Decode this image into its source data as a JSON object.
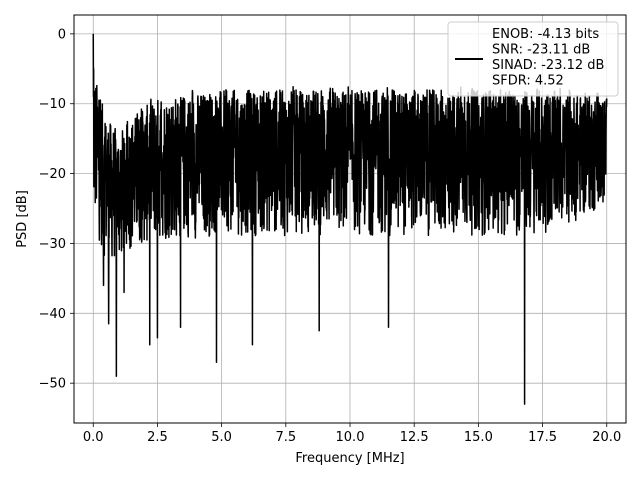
{
  "chart_data": {
    "type": "line",
    "xlabel": "Frequency [MHz]",
    "ylabel": "PSD [dB]",
    "xlim": [
      -0.75,
      20.75
    ],
    "ylim": [
      -55.7,
      2.7
    ],
    "xticks": [
      0.0,
      2.5,
      5.0,
      7.5,
      10.0,
      12.5,
      15.0,
      17.5,
      20.0
    ],
    "xtick_labels": [
      "0.0",
      "2.5",
      "5.0",
      "7.5",
      "10.0",
      "12.5",
      "15.0",
      "17.5",
      "20.0"
    ],
    "yticks": [
      0,
      -10,
      -20,
      -30,
      -40,
      -50
    ],
    "ytick_labels": [
      "0",
      "−10",
      "−20",
      "−30",
      "−40",
      "−50"
    ],
    "grid": true,
    "legend_placement": "top-right",
    "series": [
      {
        "name": "ENOB: -4.13 bits\nSNR: -23.11 dB\nSINAD: -23.12 dB\nSFDR: 4.52",
        "color": "#000000",
        "x_start": 0.0,
        "x_end": 20.0,
        "peak": {
          "x": 0.0,
          "y": 0.0
        },
        "deepest_notch": {
          "x": 16.8,
          "y": -53.0
        },
        "notches": [
          {
            "x": 0.4,
            "y": -36.0
          },
          {
            "x": 0.6,
            "y": -41.5
          },
          {
            "x": 0.9,
            "y": -49.0
          },
          {
            "x": 1.2,
            "y": -37.0
          },
          {
            "x": 2.2,
            "y": -44.5
          },
          {
            "x": 2.5,
            "y": -43.5
          },
          {
            "x": 3.4,
            "y": -42.0
          },
          {
            "x": 4.8,
            "y": -47.0
          },
          {
            "x": 6.2,
            "y": -44.5
          },
          {
            "x": 8.8,
            "y": -42.5
          },
          {
            "x": 11.5,
            "y": -42.0
          },
          {
            "x": 16.8,
            "y": -53.0
          }
        ],
        "envelope": [
          {
            "x": 0.0,
            "upper": -5.0,
            "lower": -27.0
          },
          {
            "x": 0.5,
            "upper": -12.0,
            "lower": -33.0
          },
          {
            "x": 1.0,
            "upper": -14.0,
            "lower": -33.0
          },
          {
            "x": 1.5,
            "upper": -12.0,
            "lower": -31.0
          },
          {
            "x": 2.5,
            "upper": -9.0,
            "lower": -30.0
          },
          {
            "x": 5.0,
            "upper": -8.0,
            "lower": -29.0
          },
          {
            "x": 7.5,
            "upper": -8.0,
            "lower": -29.0
          },
          {
            "x": 10.0,
            "upper": -8.0,
            "lower": -29.0
          },
          {
            "x": 12.5,
            "upper": -8.0,
            "lower": -29.0
          },
          {
            "x": 15.0,
            "upper": -8.0,
            "lower": -29.0
          },
          {
            "x": 17.5,
            "upper": -8.0,
            "lower": -29.0
          },
          {
            "x": 20.0,
            "upper": -9.0,
            "lower": -25.0
          }
        ]
      }
    ]
  }
}
